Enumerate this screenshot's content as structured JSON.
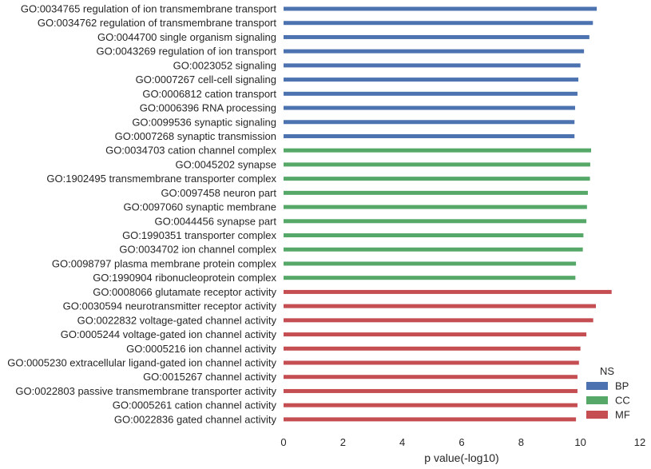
{
  "chart_data": {
    "type": "bar",
    "orientation": "horizontal",
    "xlabel": "p value(-log10)",
    "xlim": [
      0,
      12
    ],
    "xticks": [
      "0",
      "2",
      "4",
      "6",
      "8",
      "10",
      "12"
    ],
    "grid": false,
    "legend": {
      "title": "NS",
      "placement": "bottom-right",
      "entries": [
        "BP",
        "CC",
        "MF"
      ]
    },
    "colors": {
      "BP": "#4c72b0",
      "CC": "#55a868",
      "MF": "#c44e52"
    },
    "bars": [
      {
        "label": "GO:0034765 regulation of ion transmembrane transport",
        "value": 10.55,
        "ns": "BP"
      },
      {
        "label": "GO:0034762 regulation of transmembrane transport",
        "value": 10.42,
        "ns": "BP"
      },
      {
        "label": "GO:0044700 single organism signaling",
        "value": 10.3,
        "ns": "BP"
      },
      {
        "label": "GO:0043269 regulation of ion transport",
        "value": 10.12,
        "ns": "BP"
      },
      {
        "label": "GO:0023052 signaling",
        "value": 10.0,
        "ns": "BP"
      },
      {
        "label": "GO:0007267 cell-cell signaling",
        "value": 9.93,
        "ns": "BP"
      },
      {
        "label": "GO:0006812 cation transport",
        "value": 9.9,
        "ns": "BP"
      },
      {
        "label": "GO:0006396 RNA processing",
        "value": 9.82,
        "ns": "BP"
      },
      {
        "label": "GO:0099536 synaptic signaling",
        "value": 9.8,
        "ns": "BP"
      },
      {
        "label": "GO:0007268 synaptic transmission",
        "value": 9.8,
        "ns": "BP"
      },
      {
        "label": "GO:0034703 cation channel complex",
        "value": 10.36,
        "ns": "CC"
      },
      {
        "label": "GO:0045202 synapse",
        "value": 10.33,
        "ns": "CC"
      },
      {
        "label": "GO:1902495 transmembrane transporter complex",
        "value": 10.32,
        "ns": "CC"
      },
      {
        "label": "GO:0097458 neuron part",
        "value": 10.25,
        "ns": "CC"
      },
      {
        "label": "GO:0097060 synaptic membrane",
        "value": 10.22,
        "ns": "CC"
      },
      {
        "label": "GO:0044456 synapse part",
        "value": 10.2,
        "ns": "CC"
      },
      {
        "label": "GO:1990351 transporter complex",
        "value": 10.1,
        "ns": "CC"
      },
      {
        "label": "GO:0034702 ion channel complex",
        "value": 10.08,
        "ns": "CC"
      },
      {
        "label": "GO:0098797 plasma membrane protein complex",
        "value": 9.85,
        "ns": "CC"
      },
      {
        "label": "GO:1990904 ribonucleoprotein complex",
        "value": 9.83,
        "ns": "CC"
      },
      {
        "label": "GO:0008066 glutamate receptor activity",
        "value": 11.05,
        "ns": "MF"
      },
      {
        "label": "GO:0030594 neurotransmitter receptor activity",
        "value": 10.52,
        "ns": "MF"
      },
      {
        "label": "GO:0022832 voltage-gated channel activity",
        "value": 10.43,
        "ns": "MF"
      },
      {
        "label": "GO:0005244 voltage-gated ion channel activity",
        "value": 10.2,
        "ns": "MF"
      },
      {
        "label": "GO:0005216 ion channel activity",
        "value": 10.0,
        "ns": "MF"
      },
      {
        "label": "GO:0005230 extracellular ligand-gated ion channel activity",
        "value": 9.95,
        "ns": "MF"
      },
      {
        "label": "GO:0015267 channel activity",
        "value": 9.9,
        "ns": "MF"
      },
      {
        "label": "GO:0022803 passive transmembrane transporter activity",
        "value": 9.9,
        "ns": "MF"
      },
      {
        "label": "GO:0005261 cation channel activity",
        "value": 9.9,
        "ns": "MF"
      },
      {
        "label": "GO:0022836 gated channel activity",
        "value": 9.85,
        "ns": "MF"
      }
    ]
  }
}
